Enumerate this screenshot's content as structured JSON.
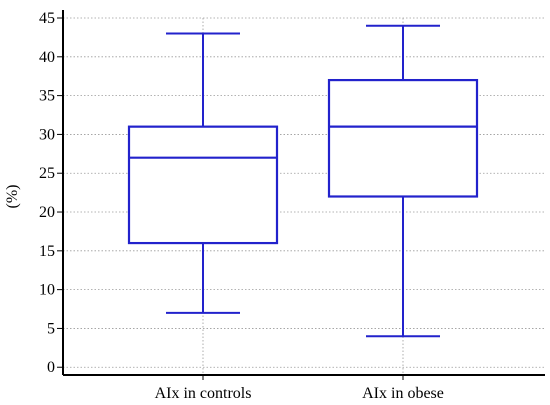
{
  "chart_data": {
    "type": "boxplot",
    "ylabel": "(%)",
    "ylim": [
      -1,
      45
    ],
    "yticks": [
      0,
      5,
      10,
      15,
      20,
      25,
      30,
      35,
      40,
      45
    ],
    "grid": true,
    "box_color": "#2222cc",
    "categories": [
      "AIx in controls",
      "AIx in obese"
    ],
    "boxes": [
      {
        "category": "AIx in controls",
        "min": 7,
        "q1": 16,
        "median": 27,
        "q3": 31,
        "max": 43
      },
      {
        "category": "AIx in obese",
        "min": 4,
        "q1": 22,
        "median": 31,
        "q3": 37,
        "max": 44
      }
    ]
  }
}
